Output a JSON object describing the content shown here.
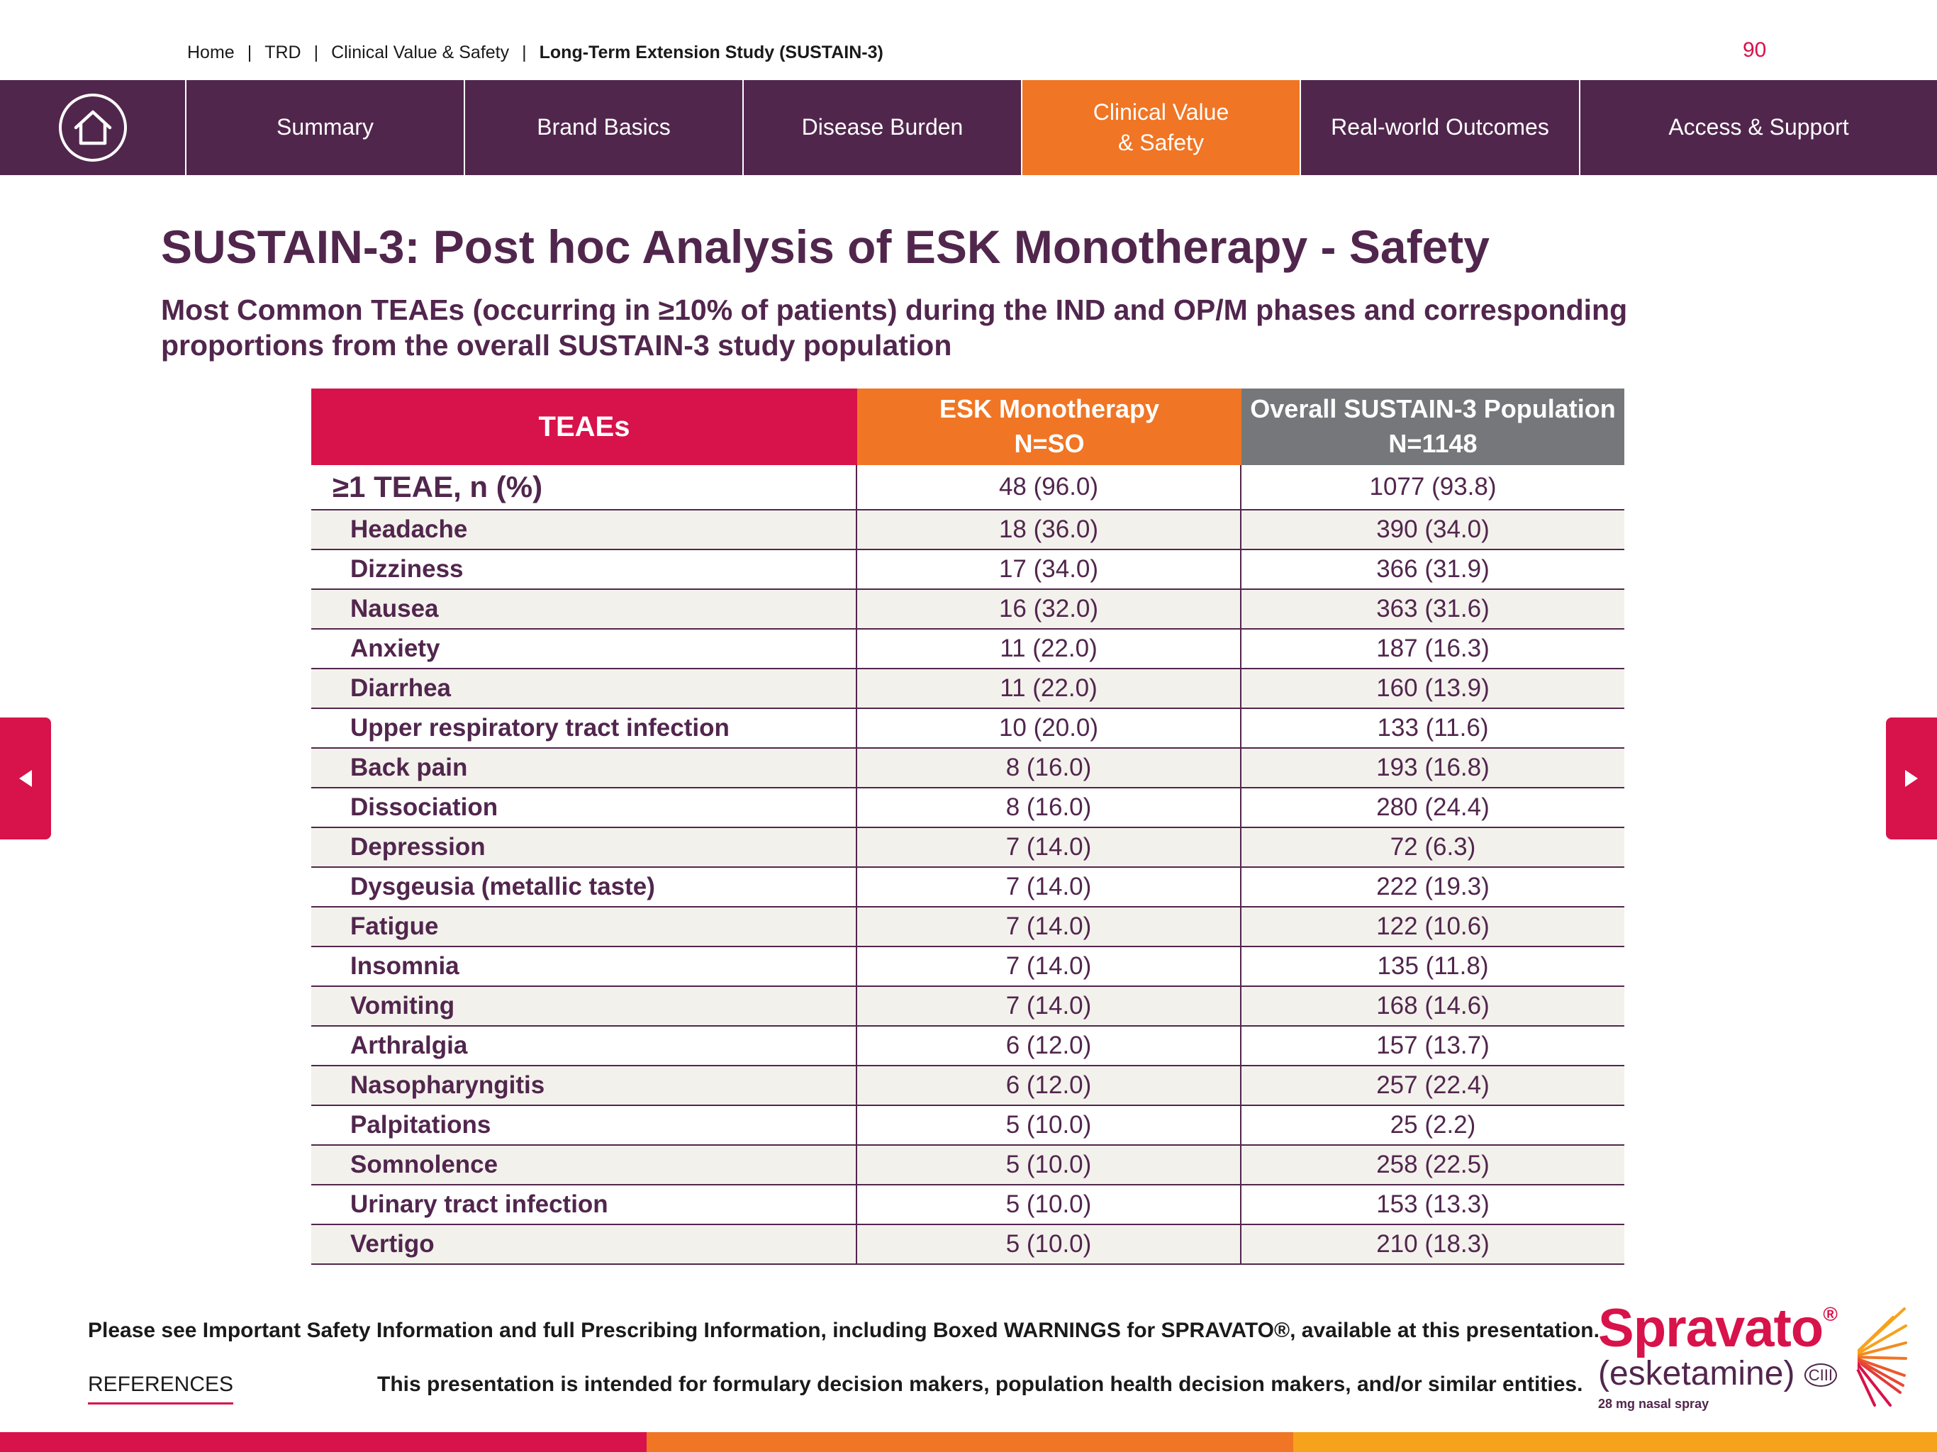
{
  "breadcrumb": {
    "items": [
      "Home",
      "TRD",
      "Clinical Value & Safety",
      "Long-Term Extension Study (SUSTAIN-3)"
    ],
    "separator": "|"
  },
  "page_number": "90",
  "nav": {
    "home_icon": "home-icon",
    "tabs": [
      {
        "label": "Summary",
        "active": false
      },
      {
        "label": "Brand Basics",
        "active": false
      },
      {
        "label": "Disease Burden",
        "active": false
      },
      {
        "label": "Clinical Value\n& Safety",
        "active": true
      },
      {
        "label": "Real-world Outcomes",
        "active": false
      },
      {
        "label": "Access & Support",
        "active": false
      }
    ]
  },
  "title": "SUSTAIN-3: Post hoc Analysis of ESK Monotherapy - Safety",
  "subtitle": "Most Common TEAEs (occurring in ≥10% of patients) during the IND and OP/M phases and corresponding proportions from the overall SUSTAIN-3 study population",
  "table": {
    "headers": [
      "TEAEs",
      "ESK Monotherapy\nN=SO",
      "Overall SUSTAIN-3 Population\nN=1148"
    ],
    "rows": [
      {
        "label": "≥1 TEAE, n (%)",
        "esk": "48 (96.0)",
        "overall": "1077 (93.8)"
      },
      {
        "label": "Headache",
        "esk": "18 (36.0)",
        "overall": "390 (34.0)"
      },
      {
        "label": "Dizziness",
        "esk": "17 (34.0)",
        "overall": "366 (31.9)"
      },
      {
        "label": "Nausea",
        "esk": "16 (32.0)",
        "overall": "363 (31.6)"
      },
      {
        "label": "Anxiety",
        "esk": "11 (22.0)",
        "overall": "187 (16.3)"
      },
      {
        "label": "Diarrhea",
        "esk": "11 (22.0)",
        "overall": "160 (13.9)"
      },
      {
        "label": "Upper respiratory tract infection",
        "esk": "10 (20.0)",
        "overall": "133 (11.6)"
      },
      {
        "label": "Back pain",
        "esk": "8 (16.0)",
        "overall": "193 (16.8)"
      },
      {
        "label": "Dissociation",
        "esk": "8 (16.0)",
        "overall": "280 (24.4)"
      },
      {
        "label": "Depression",
        "esk": "7 (14.0)",
        "overall": "72 (6.3)"
      },
      {
        "label": "Dysgeusia (metallic taste)",
        "esk": "7 (14.0)",
        "overall": "222 (19.3)"
      },
      {
        "label": "Fatigue",
        "esk": "7 (14.0)",
        "overall": "122 (10.6)"
      },
      {
        "label": "Insomnia",
        "esk": "7 (14.0)",
        "overall": "135 (11.8)"
      },
      {
        "label": "Vomiting",
        "esk": "7 (14.0)",
        "overall": "168 (14.6)"
      },
      {
        "label": "Arthralgia",
        "esk": "6 (12.0)",
        "overall": "157 (13.7)"
      },
      {
        "label": "Nasopharyngitis",
        "esk": "6 (12.0)",
        "overall": "257 (22.4)"
      },
      {
        "label": "Palpitations",
        "esk": "5 (10.0)",
        "overall": "25 (2.2)"
      },
      {
        "label": "Somnolence",
        "esk": "5 (10.0)",
        "overall": "258 (22.5)"
      },
      {
        "label": "Urinary tract infection",
        "esk": "5 (10.0)",
        "overall": "153 (13.3)"
      },
      {
        "label": "Vertigo",
        "esk": "5 (10.0)",
        "overall": "210 (18.3)"
      }
    ]
  },
  "arrows": {
    "prev_icon": "chevron-left-icon",
    "next_icon": "chevron-right-icon"
  },
  "footer": {
    "isi": "Please see Important Safety Information and full Prescribing Information, including Boxed WARNINGS for SPRAVATO®, available at this presentation.",
    "references": "REFERENCES",
    "audience": "This presentation is intended for formulary decision makers, population health decision makers, and/or similar entities."
  },
  "logo": {
    "name": "Spravato",
    "mark": "®",
    "generic": "(esketamine)",
    "schedule": "CIII",
    "dose": "28 mg nasal spray"
  },
  "colors": {
    "purple": "#51264d",
    "orange": "#f07524",
    "magenta": "#d8124a",
    "gray": "#76777a",
    "gold": "#f7a21b"
  }
}
